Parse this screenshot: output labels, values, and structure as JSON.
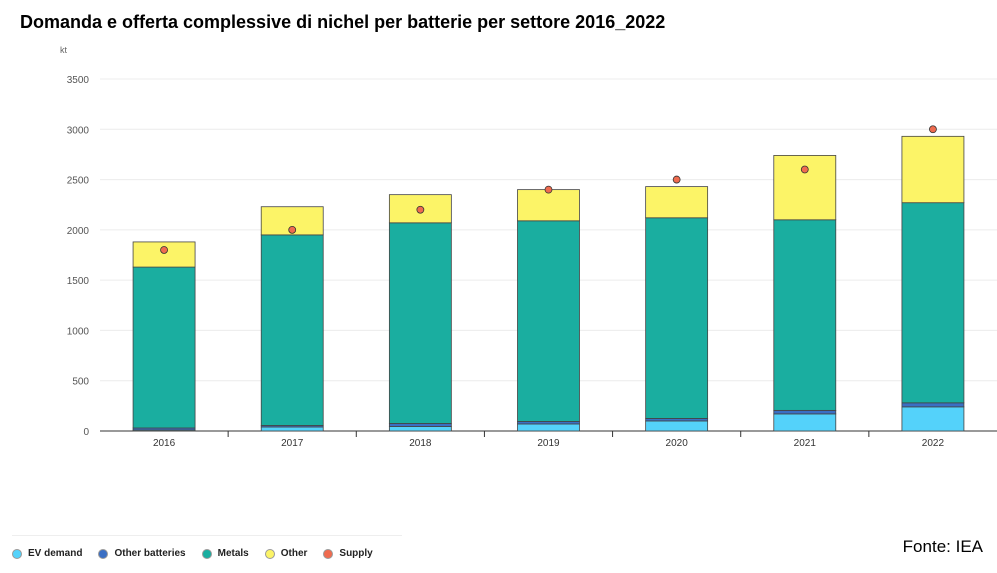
{
  "chart_data": {
    "type": "bar",
    "title": "Domanda e offerta complessive di nichel per batterie per settore 2016_2022",
    "ylabel": "kt",
    "xlabel": "",
    "ylim": [
      0,
      3500
    ],
    "yticks": [
      0,
      500,
      1000,
      1500,
      2000,
      2500,
      3000,
      3500
    ],
    "categories": [
      "2016",
      "2017",
      "2018",
      "2019",
      "2020",
      "2021",
      "2022"
    ],
    "series": [
      {
        "name": "EV demand",
        "color": "#54d2fa",
        "values": [
          10,
          40,
          45,
          70,
          100,
          170,
          240
        ]
      },
      {
        "name": "Other batteries",
        "color": "#3a6fc4",
        "values": [
          20,
          15,
          30,
          25,
          25,
          35,
          40
        ]
      },
      {
        "name": "Metals",
        "color": "#1aaea0",
        "values": [
          1600,
          1895,
          1995,
          1995,
          1995,
          1895,
          1990
        ]
      },
      {
        "name": "Other",
        "color": "#fcf467",
        "values": [
          250,
          280,
          280,
          310,
          310,
          640,
          660
        ]
      }
    ],
    "supply": {
      "name": "Supply",
      "color": "#ef6b4f",
      "values": [
        1800,
        2000,
        2200,
        2400,
        2500,
        2600,
        3000
      ]
    },
    "legend_position": "bottom-left",
    "grid": true
  },
  "source": "Fonte: IEA"
}
